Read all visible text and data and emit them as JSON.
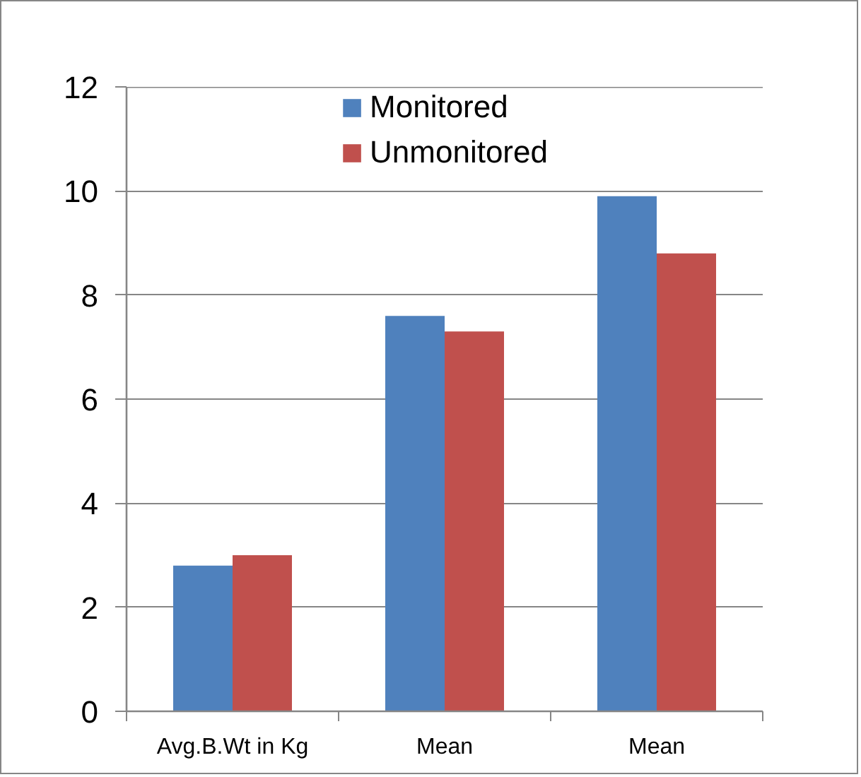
{
  "chart_data": {
    "type": "bar",
    "categories": [
      "Avg.B.Wt in Kg",
      "Mean",
      "Mean"
    ],
    "series": [
      {
        "name": "Monitored",
        "color": "#4f81bd",
        "values": [
          2.8,
          7.6,
          9.9
        ]
      },
      {
        "name": "Unmonitored",
        "color": "#c0504d",
        "values": [
          3.0,
          7.3,
          8.8
        ]
      }
    ],
    "ylim": [
      0,
      12
    ],
    "yticks": [
      0,
      2,
      4,
      6,
      8,
      10,
      12
    ],
    "grid": "y",
    "legend": "top"
  }
}
